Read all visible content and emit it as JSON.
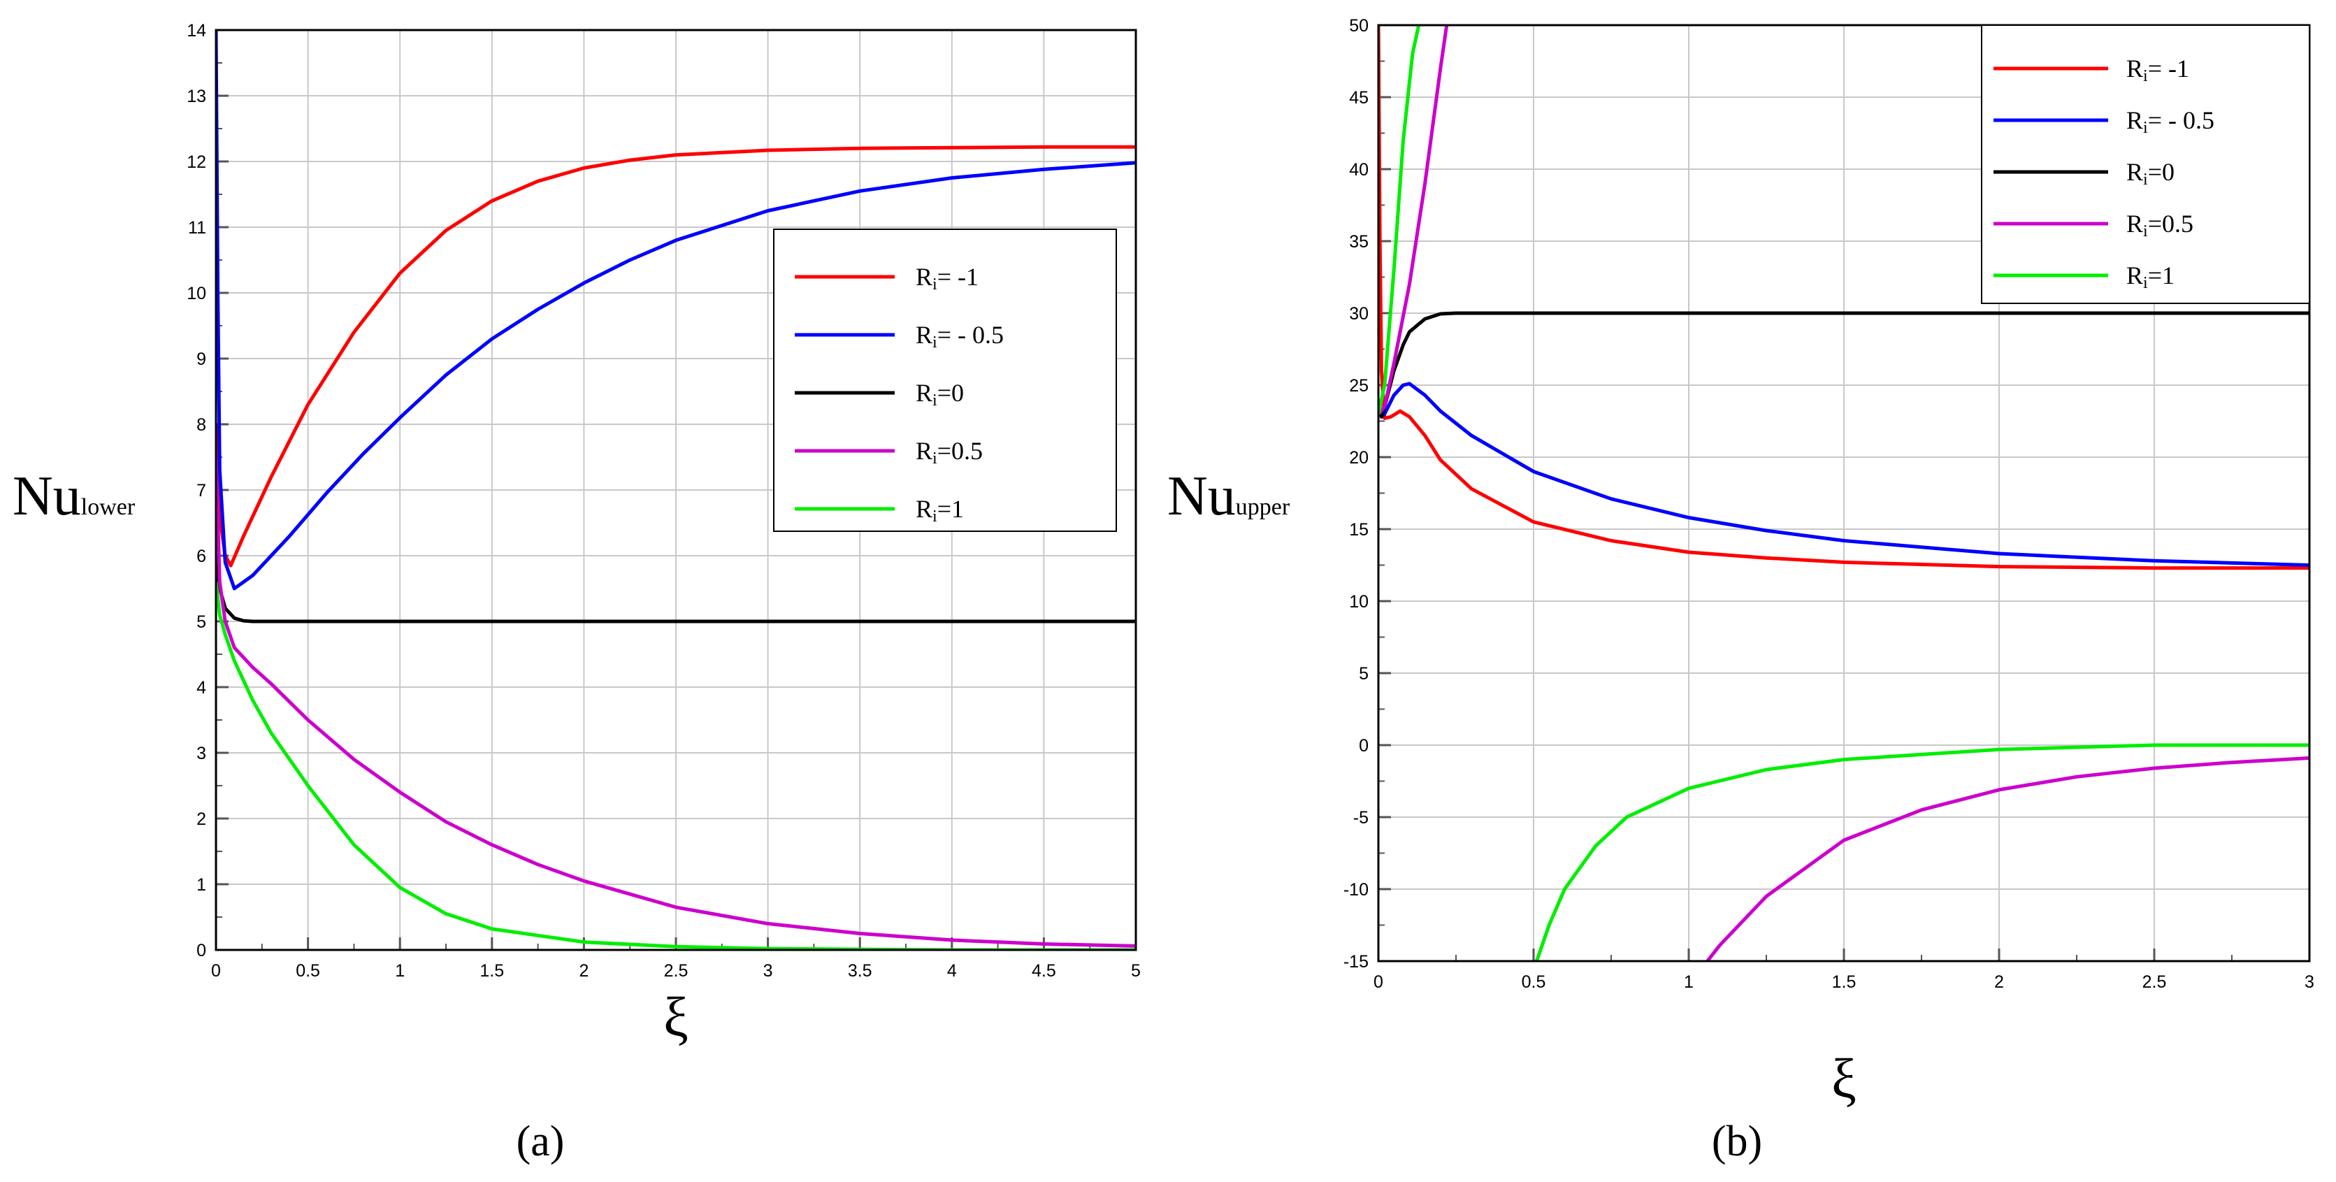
{
  "chart_data": [
    {
      "type": "line",
      "panel_label": "(a)",
      "xlabel": "ξ",
      "ylabel_main": "Nu",
      "ylabel_sub": "lower",
      "xlim": [
        0,
        5
      ],
      "ylim": [
        0,
        14
      ],
      "xticks": [
        0,
        0.5,
        1,
        1.5,
        2,
        2.5,
        3,
        3.5,
        4,
        4.5,
        5
      ],
      "xtick_labels": [
        "0",
        "0.5",
        "1",
        "1.5",
        "2",
        "2.5",
        "3",
        "3.5",
        "4",
        "4.5",
        "5"
      ],
      "yticks": [
        0,
        1,
        2,
        3,
        4,
        5,
        6,
        7,
        8,
        9,
        10,
        11,
        12,
        13,
        14
      ],
      "ytick_labels": [
        "0",
        "1",
        "2",
        "3",
        "4",
        "5",
        "6",
        "7",
        "8",
        "9",
        "10",
        "11",
        "12",
        "13",
        "14"
      ],
      "grid": true,
      "legend_position": "center-right",
      "series": [
        {
          "name": "Ri= -1",
          "label_main": "R",
          "label_sub": "i",
          "label_rest": "= -1",
          "color": "#ff0000",
          "x": [
            0,
            0.02,
            0.05,
            0.08,
            0.15,
            0.3,
            0.5,
            0.75,
            1,
            1.25,
            1.5,
            1.75,
            2,
            2.25,
            2.5,
            3,
            3.5,
            4,
            4.5,
            5
          ],
          "y": [
            8.0,
            6.6,
            6.0,
            5.85,
            6.3,
            7.2,
            8.3,
            9.4,
            10.3,
            10.95,
            11.4,
            11.7,
            11.9,
            12.02,
            12.1,
            12.17,
            12.2,
            12.21,
            12.22,
            12.22
          ]
        },
        {
          "name": "Ri= - 0.5",
          "label_main": "R",
          "label_sub": "i",
          "label_rest": "= - 0.5",
          "color": "#0000ff",
          "x": [
            0,
            0.01,
            0.02,
            0.05,
            0.1,
            0.2,
            0.4,
            0.6,
            0.8,
            1,
            1.25,
            1.5,
            1.75,
            2,
            2.25,
            2.5,
            3,
            3.5,
            4,
            4.5,
            5
          ],
          "y": [
            14,
            10,
            7.3,
            5.9,
            5.5,
            5.7,
            6.3,
            6.95,
            7.55,
            8.1,
            8.75,
            9.3,
            9.75,
            10.15,
            10.5,
            10.8,
            11.25,
            11.55,
            11.75,
            11.88,
            11.98
          ]
        },
        {
          "name": "Ri=0",
          "label_main": "R",
          "label_sub": "i",
          "label_rest": "=0",
          "color": "#000000",
          "x": [
            0,
            0.02,
            0.05,
            0.1,
            0.15,
            0.2,
            0.3,
            0.5,
            1,
            2,
            3,
            4,
            5
          ],
          "y": [
            6.0,
            5.5,
            5.2,
            5.05,
            5.01,
            5.0,
            5.0,
            5.0,
            5.0,
            5.0,
            5.0,
            5.0,
            5.0
          ]
        },
        {
          "name": "Ri=0.5",
          "label_main": "R",
          "label_sub": "i",
          "label_rest": "=0.5",
          "color": "#cc00cc",
          "x": [
            0,
            0.02,
            0.05,
            0.1,
            0.2,
            0.3,
            0.5,
            0.75,
            1,
            1.25,
            1.5,
            1.75,
            2,
            2.5,
            3,
            3.5,
            4,
            4.5,
            5
          ],
          "y": [
            7.5,
            5.6,
            5.0,
            4.6,
            4.3,
            4.05,
            3.5,
            2.9,
            2.4,
            1.95,
            1.6,
            1.3,
            1.05,
            0.65,
            0.4,
            0.25,
            0.15,
            0.09,
            0.06
          ]
        },
        {
          "name": "Ri=1",
          "label_main": "R",
          "label_sub": "i",
          "label_rest": "=1",
          "color": "#00ee00",
          "x": [
            0,
            0.02,
            0.05,
            0.1,
            0.2,
            0.3,
            0.5,
            0.75,
            1,
            1.25,
            1.5,
            2,
            2.5,
            3,
            3.5,
            4,
            5
          ],
          "y": [
            5.6,
            5.1,
            4.8,
            4.4,
            3.8,
            3.3,
            2.5,
            1.6,
            0.95,
            0.55,
            0.32,
            0.12,
            0.05,
            0.02,
            0.01,
            0.0,
            0.0
          ]
        }
      ]
    },
    {
      "type": "line",
      "panel_label": "(b)",
      "xlabel": "ξ",
      "ylabel_main": "Nu",
      "ylabel_sub": "upper",
      "xlim": [
        0,
        3
      ],
      "ylim": [
        -15,
        50
      ],
      "xticks": [
        0,
        0.5,
        1,
        1.5,
        2,
        2.5,
        3
      ],
      "xtick_labels": [
        "0",
        "0.5",
        "1",
        "1.5",
        "2",
        "2.5",
        "3"
      ],
      "yticks": [
        -15,
        -10,
        -5,
        0,
        5,
        10,
        15,
        20,
        25,
        30,
        35,
        40,
        45,
        50
      ],
      "ytick_labels": [
        "-15",
        "-10",
        "-5",
        "0",
        "5",
        "10",
        "15",
        "20",
        "25",
        "30",
        "35",
        "40",
        "45",
        "50"
      ],
      "grid": true,
      "legend_position": "top-right",
      "series": [
        {
          "name": "Ri= -1",
          "label_main": "R",
          "label_sub": "i",
          "label_rest": "= -1",
          "color": "#ff0000",
          "x": [
            0,
            0.005,
            0.01,
            0.02,
            0.04,
            0.07,
            0.1,
            0.15,
            0.2,
            0.3,
            0.5,
            0.75,
            1,
            1.25,
            1.5,
            2,
            2.5,
            3
          ],
          "y": [
            50,
            35,
            26,
            22.7,
            22.8,
            23.2,
            22.8,
            21.5,
            19.8,
            17.8,
            15.5,
            14.2,
            13.4,
            13.0,
            12.7,
            12.4,
            12.3,
            12.3
          ]
        },
        {
          "name": "Ri= - 0.5",
          "label_main": "R",
          "label_sub": "i",
          "label_rest": "= - 0.5",
          "color": "#0000ff",
          "x": [
            0,
            0.01,
            0.02,
            0.05,
            0.08,
            0.1,
            0.15,
            0.2,
            0.3,
            0.5,
            0.75,
            1,
            1.25,
            1.5,
            2,
            2.5,
            3
          ],
          "y": [
            23.5,
            22.8,
            23.0,
            24.3,
            25.0,
            25.1,
            24.3,
            23.2,
            21.5,
            19.0,
            17.1,
            15.8,
            14.9,
            14.2,
            13.3,
            12.8,
            12.5
          ]
        },
        {
          "name": "Ri=0",
          "label_main": "R",
          "label_sub": "i",
          "label_rest": "=0",
          "color": "#000000",
          "x": [
            0,
            0.01,
            0.02,
            0.05,
            0.08,
            0.1,
            0.15,
            0.2,
            0.25,
            0.3,
            0.5,
            1,
            1.5,
            2,
            2.5,
            3
          ],
          "y": [
            24.0,
            22.8,
            23.5,
            26.0,
            27.8,
            28.7,
            29.6,
            29.95,
            30.0,
            30.0,
            30.0,
            30.0,
            30.0,
            30.0,
            30.0,
            30.0
          ]
        },
        {
          "name": "Ri=0.5",
          "label_main": "R",
          "label_sub": "i",
          "label_rest": "=0.5",
          "color": "#cc00cc",
          "x": [
            0,
            0.02,
            0.05,
            0.1,
            0.15,
            0.2,
            0.22,
            1.06,
            1.1,
            1.25,
            1.5,
            1.75,
            2,
            2.25,
            2.5,
            2.75,
            3
          ],
          "y": [
            23,
            23.5,
            26.5,
            32,
            39,
            47,
            50,
            -15,
            -13.9,
            -10.5,
            -6.6,
            -4.5,
            -3.1,
            -2.2,
            -1.6,
            -1.2,
            -0.9
          ]
        },
        {
          "name": "Ri=1",
          "label_main": "R",
          "label_sub": "i",
          "label_rest": "=1",
          "color": "#00ee00",
          "x": [
            0,
            0.02,
            0.05,
            0.08,
            0.11,
            0.13,
            0.51,
            0.55,
            0.6,
            0.7,
            0.8,
            1,
            1.25,
            1.5,
            2,
            2.5,
            3
          ],
          "y": [
            23,
            25,
            33,
            42,
            48,
            50,
            -15,
            -12.5,
            -10.0,
            -7.0,
            -5.0,
            -3.0,
            -1.7,
            -1.0,
            -0.3,
            0.0,
            0.0
          ]
        }
      ]
    }
  ]
}
